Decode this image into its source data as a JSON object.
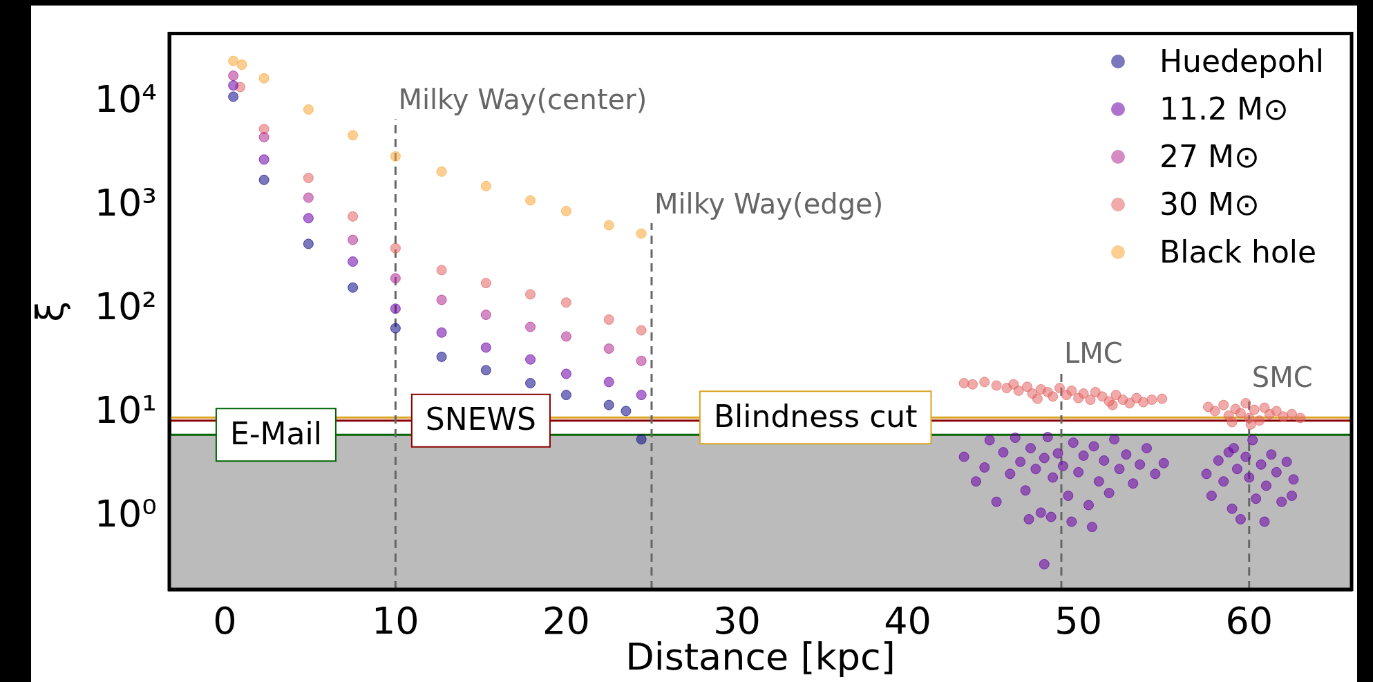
{
  "chart_data": {
    "type": "scatter",
    "xlabel": "Distance [kpc]",
    "ylabel": "ξ",
    "xlim": [
      -3.25,
      66
    ],
    "xticks": [
      0,
      10,
      20,
      30,
      40,
      50,
      60
    ],
    "ylim": [
      0.2,
      46000
    ],
    "yticks": [
      {
        "value": 1,
        "label": "10⁰"
      },
      {
        "value": 10,
        "label": "10¹"
      },
      {
        "value": 100,
        "label": "10²"
      },
      {
        "value": 1000,
        "label": "10³"
      },
      {
        "value": 10000,
        "label": "10⁴"
      }
    ],
    "log": "y",
    "grid": false,
    "legend": "top right",
    "marker": "circle",
    "series": [
      {
        "name": "Huedepohl",
        "color": "#0d0887",
        "x": [
          0.5,
          2.3,
          4.9,
          7.5,
          10,
          12.7,
          15.3,
          17.9,
          20,
          22.5,
          23.5,
          24.4
        ],
        "values": [
          11300,
          1780,
          430,
          163,
          66,
          35,
          26,
          19.5,
          15,
          12,
          10.5,
          5.6
        ]
      },
      {
        "name": "11.2 M⊙",
        "color": "#6a00a8",
        "x": [
          0.5,
          2.3,
          4.9,
          7.5,
          10,
          12.7,
          15.3,
          17.9,
          20,
          22.5,
          24.4,
          43.3,
          44,
          44.5,
          44.8,
          45.2,
          45.6,
          46,
          46.3,
          46.6,
          46.9,
          47.2,
          47.5,
          47.8,
          48,
          48.2,
          48.5,
          48.8,
          48,
          49.1,
          49.4,
          49.7,
          50,
          50.3,
          50.6,
          50.9,
          51.2,
          51.5,
          51.8,
          52.1,
          52.4,
          52.8,
          53.2,
          53.6,
          54,
          54.5,
          55,
          49.6,
          48.4,
          47.1,
          50.8,
          57.5,
          57.8,
          58.2,
          58.5,
          58.8,
          59,
          59.3,
          59.5,
          59.8,
          60,
          60.2,
          60.4,
          60.7,
          61,
          61.3,
          61.6,
          61.9,
          62.2,
          62.6,
          62.5,
          59.1,
          60.9
        ],
        "values": [
          14500,
          2800,
          760,
          290,
          102,
          60,
          43,
          33,
          24,
          20,
          15,
          3.8,
          2.2,
          3,
          5.5,
          1.4,
          4.2,
          2.6,
          5.8,
          3.4,
          1.8,
          4.6,
          2.9,
          1.1,
          3.7,
          5.9,
          2.4,
          4.1,
          0.35,
          3.1,
          1.6,
          5.2,
          2.7,
          3.9,
          1.3,
          4.8,
          2.2,
          3.5,
          1.7,
          5.6,
          2.9,
          4,
          2.1,
          3.2,
          4.6,
          2.6,
          3.3,
          0.9,
          1,
          0.95,
          0.8,
          2.6,
          1.6,
          3.5,
          2.2,
          4.2,
          1.2,
          2.9,
          0.95,
          3.8,
          2.4,
          5.5,
          1.5,
          3.2,
          2,
          4,
          2.7,
          1.4,
          3.4,
          2.3,
          1.6,
          4.6,
          0.9
        ]
      },
      {
        "name": "27 M⊙",
        "color": "#b12a90",
        "x": [
          0.5,
          2.3,
          4.9,
          7.5,
          10,
          12.7,
          15.3,
          17.9,
          20,
          22.5,
          24.4
        ],
        "values": [
          18000,
          4600,
          1200,
          470,
          200,
          124,
          89,
          68,
          55,
          42,
          32
        ]
      },
      {
        "name": "30 M⊙",
        "color": "#e16462",
        "x": [
          0.9,
          2.3,
          4.9,
          7.5,
          10,
          12.7,
          15.3,
          17.9,
          20,
          22.5,
          24.4,
          43.3,
          43.8,
          44.5,
          45.2,
          45.8,
          46.2,
          46.5,
          47,
          47.3,
          47.8,
          48.2,
          48.5,
          48.9,
          49.3,
          49.6,
          50,
          50.3,
          50.7,
          51,
          51.4,
          51.8,
          52.2,
          52.6,
          53,
          53.4,
          53.8,
          54.3,
          54.9,
          52,
          47.6,
          57.6,
          58,
          58.5,
          58.8,
          59.2,
          59.5,
          59.8,
          60,
          60.3,
          60.6,
          60.9,
          61.2,
          61.6,
          62,
          62.5,
          63,
          59,
          60.1
        ],
        "values": [
          14000,
          5500,
          1860,
          790,
          390,
          240,
          180,
          140,
          117,
          80,
          63,
          19.5,
          19,
          20,
          18.5,
          17.5,
          19,
          16.5,
          18,
          15.5,
          17,
          16,
          14.5,
          17.5,
          15,
          16.5,
          14,
          15.5,
          13.5,
          16,
          14.5,
          13,
          15,
          13.5,
          12.5,
          14,
          12.8,
          13.5,
          13.8,
          12,
          13.8,
          11.5,
          10.5,
          12,
          9.5,
          11,
          10,
          12.5,
          9,
          10.8,
          8.5,
          11.3,
          9.8,
          10.5,
          9.3,
          9.8,
          9,
          8.2,
          7.8
        ]
      },
      {
        "name": "Black hole",
        "color": "#fca636",
        "x": [
          0.5,
          1,
          2.3,
          4.9,
          7.5,
          10,
          12.7,
          15.3,
          17.9,
          20,
          22.5,
          24.4
        ],
        "values": [
          25000,
          23000,
          17000,
          8500,
          4800,
          3000,
          2140,
          1550,
          1130,
          890,
          650,
          540
        ]
      }
    ],
    "bands": [
      {
        "axis": "y",
        "from": 0.2,
        "to": 6.2,
        "color": "#bbbbbb"
      }
    ],
    "ref_lines": [
      {
        "axis": "y",
        "value": 9.1,
        "color": "#daa520",
        "line_style": "solid"
      },
      {
        "axis": "y",
        "value": 8.5,
        "color": "#8b0000",
        "line_style": "solid"
      },
      {
        "axis": "y",
        "value": 6.2,
        "color": "#006400",
        "line_style": "solid"
      },
      {
        "axis": "x",
        "value": 10,
        "color": "#666666",
        "line_style": "dashed"
      },
      {
        "axis": "x",
        "value": 25,
        "color": "#666666",
        "line_style": "dashed"
      },
      {
        "axis": "x",
        "value": 49,
        "color": "#666666",
        "line_style": "dashed"
      },
      {
        "axis": "x",
        "value": 60,
        "color": "#666666",
        "line_style": "dashed"
      }
    ],
    "annotations": [
      {
        "text": "E-Mail",
        "x": 3,
        "y": 6.2
      },
      {
        "text": "SNEWS",
        "x": 15,
        "y": 8.5
      },
      {
        "text": "Blindness cut",
        "x": 34.6,
        "y": 9.1
      },
      {
        "text": "Milky Way(center)",
        "x": 10,
        "y": 6900
      },
      {
        "text": "Milky Way(edge)",
        "x": 25,
        "y": 680
      },
      {
        "text": "LMC",
        "x": 49,
        "y": 25
      },
      {
        "text": "SMC",
        "x": 60,
        "y": 14.6
      }
    ]
  }
}
